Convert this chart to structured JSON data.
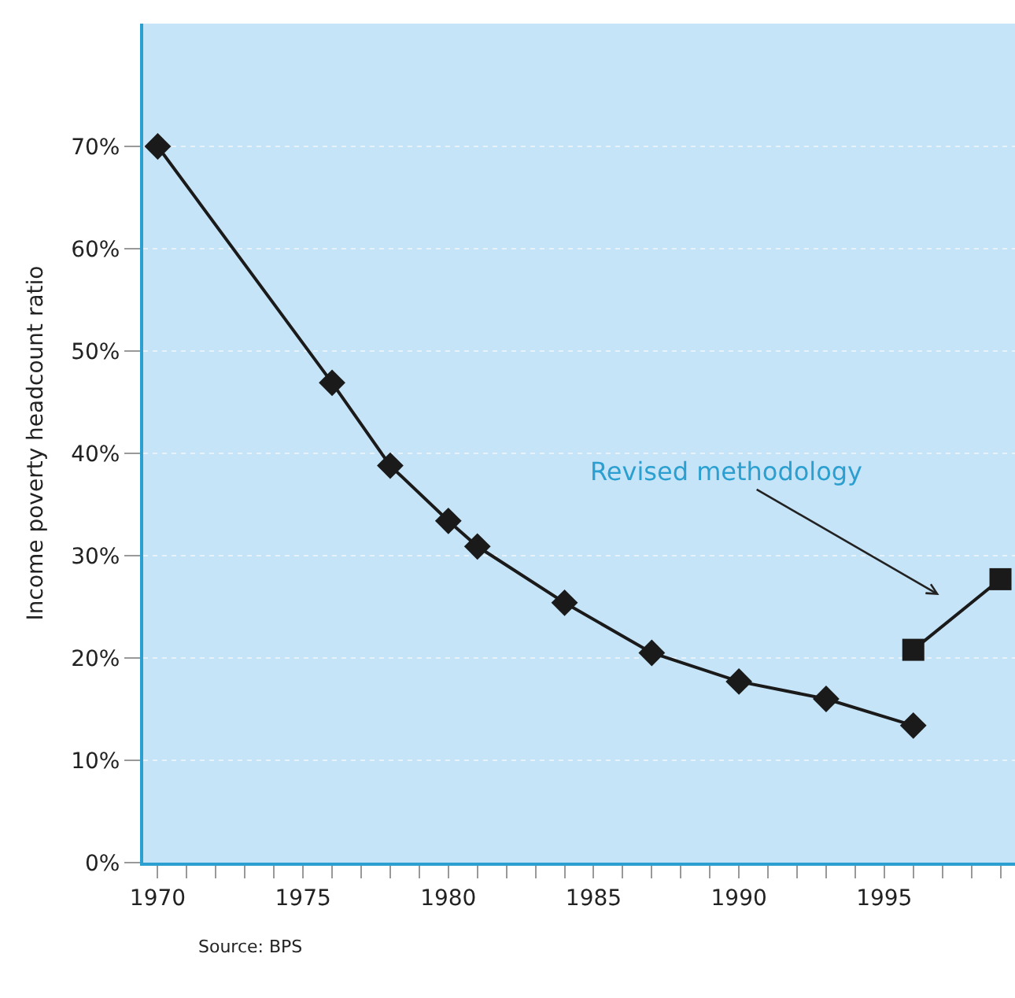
{
  "chart_data": {
    "type": "line",
    "ylabel": "Income poverty headcount ratio",
    "series": [
      {
        "color": "#1a1a1a",
        "marker": "diamond",
        "x": [
          1970,
          1976,
          1978,
          1980,
          1981,
          1984,
          1987,
          1990,
          1993,
          1996
        ],
        "values": [
          70,
          46.9,
          38.8,
          33.4,
          30.9,
          25.4,
          20.5,
          17.7,
          16.0,
          13.4
        ]
      },
      {
        "color": "#1a1a1a",
        "marker": "square",
        "x": [
          1996,
          1999
        ],
        "values": [
          20.8,
          27.7
        ]
      }
    ],
    "xlim": [
      1969.5,
      1999.5
    ],
    "xticks": [
      1970,
      {
        "value": 1971,
        "label": null
      },
      {
        "value": 1972,
        "label": null
      },
      {
        "value": 1973,
        "label": null
      },
      {
        "value": 1974,
        "label": null
      },
      1975,
      {
        "value": 1976,
        "label": null
      },
      {
        "value": 1977,
        "label": null
      },
      {
        "value": 1978,
        "label": null
      },
      {
        "value": 1979,
        "label": null
      },
      1980,
      {
        "value": 1981,
        "label": null
      },
      {
        "value": 1982,
        "label": null
      },
      {
        "value": 1983,
        "label": null
      },
      {
        "value": 1984,
        "label": null
      },
      1985,
      {
        "value": 1986,
        "label": null
      },
      {
        "value": 1987,
        "label": null
      },
      {
        "value": 1988,
        "label": null
      },
      {
        "value": 1989,
        "label": null
      },
      1990,
      {
        "value": 1991,
        "label": null
      },
      {
        "value": 1992,
        "label": null
      },
      {
        "value": 1993,
        "label": null
      },
      {
        "value": 1994,
        "label": null
      },
      1995,
      {
        "value": 1996,
        "label": null
      },
      {
        "value": 1997,
        "label": null
      },
      {
        "value": 1998,
        "label": null
      },
      {
        "value": 1999,
        "label": null
      }
    ],
    "ylim": [
      0,
      82
    ],
    "yticks": [
      {
        "value": 0,
        "label": "0%"
      },
      {
        "value": 10,
        "label": "10%"
      },
      {
        "value": 20,
        "label": "20%"
      },
      {
        "value": 30,
        "label": "30%"
      },
      {
        "value": 40,
        "label": "40%"
      },
      {
        "value": 50,
        "label": "50%"
      },
      {
        "value": 60,
        "label": "60%"
      },
      {
        "value": 70,
        "label": "70%"
      }
    ],
    "grid": "y",
    "line_style": "solid",
    "annotations": [
      "Revised methodology",
      "Source: BPS"
    ]
  }
}
